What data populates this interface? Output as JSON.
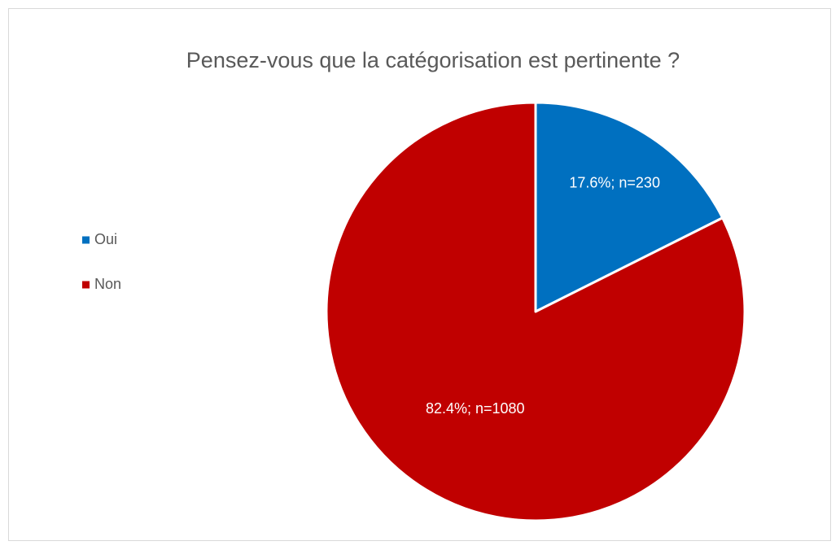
{
  "chart_data": {
    "type": "pie",
    "title": "Pensez-vous que la catégorisation est pertinente ?",
    "categories": [
      "Oui",
      "Non"
    ],
    "values": [
      17.6,
      82.4
    ],
    "value_labels": [
      "17.6%; n=230",
      "82.4%; n=1080"
    ],
    "colors": [
      "#0070c0",
      "#c00000"
    ],
    "legend": "left"
  }
}
